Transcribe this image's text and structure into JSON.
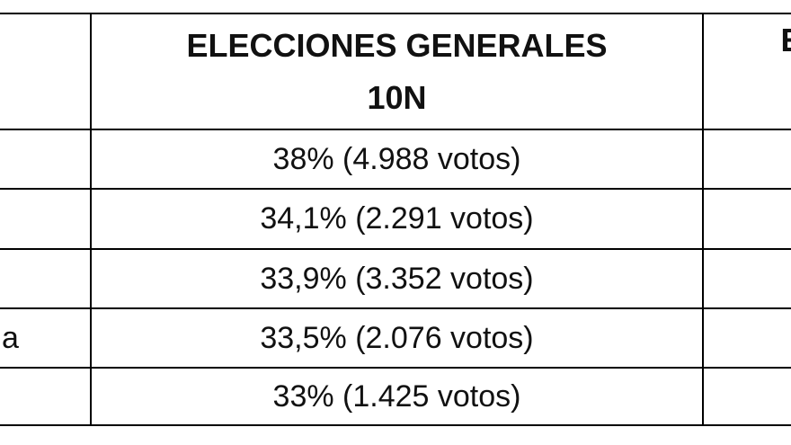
{
  "table": {
    "header": {
      "col1_line1": "ELECCIONES GENERALES",
      "col1_line2": "10N",
      "col2_partial": "EL"
    },
    "rows": [
      {
        "label_partial": "",
        "value": "38% (4.988 votos)"
      },
      {
        "label_partial": "",
        "value": "34,1% (2.291 votos)"
      },
      {
        "label_partial": "",
        "value": "33,9% (3.352 votos)"
      },
      {
        "label_partial": "a",
        "value": "33,5% (2.076 votos)"
      },
      {
        "label_partial": "",
        "value": "33% (1.425 votos)"
      }
    ]
  }
}
